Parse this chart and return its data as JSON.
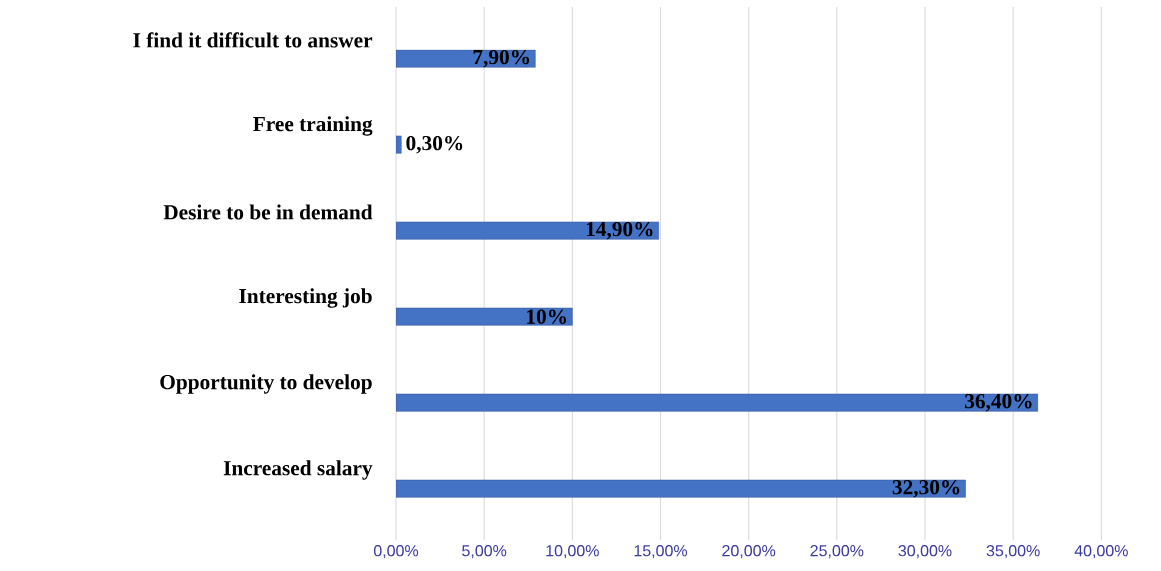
{
  "chart_data": {
    "type": "bar",
    "orientation": "horizontal",
    "categories": [
      "I find it difficult to answer",
      "Free training",
      "Desire to be in demand",
      "Interesting job",
      "Opportunity to develop",
      "Increased salary"
    ],
    "values": [
      7.9,
      0.3,
      14.9,
      10,
      36.4,
      32.3
    ],
    "value_labels": [
      "7,90%",
      "0,30%",
      "14,90%",
      "10%",
      "36,40%",
      "32,30%"
    ],
    "color": "#4472c4",
    "xlim": [
      0,
      40
    ],
    "xticks": [
      {
        "value": 0,
        "label": "0,00%"
      },
      {
        "value": 5,
        "label": "5,00%"
      },
      {
        "value": 10,
        "label": "10,00%"
      },
      {
        "value": 15,
        "label": "15,00%"
      },
      {
        "value": 20,
        "label": "20,00%"
      },
      {
        "value": 25,
        "label": "25,00%"
      },
      {
        "value": 30,
        "label": "30,00%"
      },
      {
        "value": 35,
        "label": "35,00%"
      },
      {
        "value": 40,
        "label": "40,00%"
      }
    ],
    "grid": "x"
  }
}
